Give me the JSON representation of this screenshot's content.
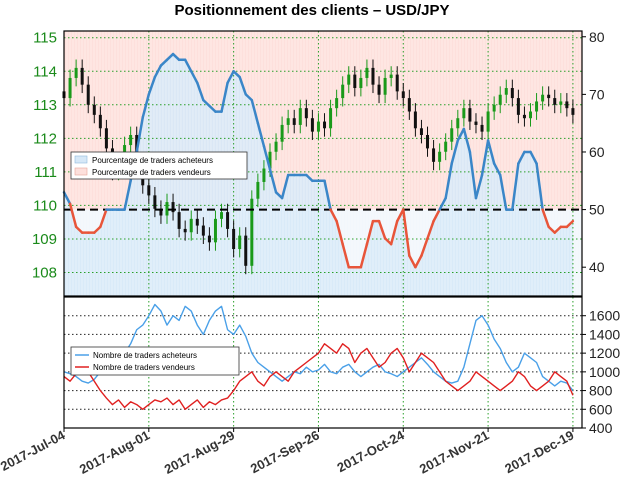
{
  "title": "Positionnement des clients – USD/JPY",
  "colors": {
    "buyers": "#3a86c8",
    "sellers": "#e8553a",
    "candle_up": "#1a9a1a",
    "candle_down": "#111111",
    "buy_fill": "#d6e8f7",
    "sell_fill": "#fde0dc",
    "lower_buy": "#4aa0e8",
    "lower_sell": "#e02020",
    "grid": "#2aa02a"
  },
  "x_ticks": [
    "2017-Jul-04",
    "2017-Aug-01",
    "2017-Aug-29",
    "2017-Sep-26",
    "2017-Oct-24",
    "2017-Nov-21",
    "2017-Dec-19"
  ],
  "chart_data": [
    {
      "type": "line",
      "panel": "upper",
      "title": "",
      "left_axis": {
        "ylim": [
          107.3,
          115.2
        ],
        "ticks": [
          108,
          109,
          110,
          111,
          112,
          113,
          114,
          115
        ]
      },
      "right_axis": {
        "ylim": [
          35,
          81
        ],
        "ticks": [
          40,
          50,
          60,
          70,
          80
        ]
      },
      "threshold": 50,
      "grid": true,
      "legend": {
        "placement": "middle-left",
        "entries": [
          "Pourcentage de traders acheteurs",
          "Pourcentage de traders vendeurs"
        ]
      },
      "series": [
        {
          "name": "Pourcentage de traders acheteurs",
          "axis": "right",
          "x": [
            0,
            2,
            4,
            6,
            8,
            10,
            12,
            14,
            16,
            18,
            20,
            22,
            24,
            26,
            28,
            30,
            32,
            34,
            36,
            38,
            40,
            42,
            44,
            46,
            48,
            50,
            52,
            54,
            56,
            58,
            60,
            62,
            64,
            66,
            68,
            70,
            72,
            74,
            76,
            78,
            80,
            82,
            84,
            86,
            88,
            90,
            92,
            94,
            96,
            98,
            100,
            102,
            104,
            106,
            108,
            110,
            112,
            114,
            116,
            118,
            120,
            122,
            124,
            126,
            128,
            130,
            132,
            134,
            136,
            138,
            140,
            142,
            144,
            146,
            148,
            150,
            152,
            154,
            156,
            158,
            160,
            162,
            164,
            166,
            168
          ],
          "values": [
            53,
            51,
            47,
            46,
            46,
            46,
            47,
            50,
            50,
            50,
            50,
            55,
            60,
            66,
            70,
            73,
            75,
            76,
            77,
            76,
            76,
            74,
            72,
            69,
            68,
            67,
            67,
            72,
            74,
            73,
            70,
            69,
            65,
            61,
            57,
            53,
            52,
            56,
            56,
            56,
            56,
            55,
            55,
            55,
            50,
            48,
            44,
            40,
            40,
            40,
            44,
            48,
            48,
            45,
            44,
            48,
            50,
            42,
            40,
            42,
            45,
            48,
            50,
            52,
            58,
            62,
            64,
            60,
            52,
            56,
            62,
            58,
            56,
            50,
            50,
            58,
            60,
            60,
            58,
            50,
            47,
            46,
            47,
            47,
            48
          ]
        }
      ]
    },
    {
      "type": "line",
      "panel": "upper",
      "title": "",
      "series": [
        {
          "name": "USD/JPY",
          "axis": "left",
          "kind": "candlestick",
          "x": [
            0,
            2,
            4,
            6,
            8,
            10,
            12,
            14,
            16,
            18,
            20,
            22,
            24,
            26,
            28,
            30,
            32,
            34,
            36,
            38,
            40,
            42,
            44,
            46,
            48,
            50,
            52,
            54,
            56,
            58,
            60,
            62,
            64,
            66,
            68,
            70,
            72,
            74,
            76,
            78,
            80,
            82,
            84,
            86,
            88,
            90,
            92,
            94,
            96,
            98,
            100,
            102,
            104,
            106,
            108,
            110,
            112,
            114,
            116,
            118,
            120,
            122,
            124,
            126,
            128,
            130,
            132,
            134,
            136,
            138,
            140,
            142,
            144,
            146,
            148,
            150,
            152,
            154,
            156,
            158,
            160,
            162,
            164,
            166,
            168
          ],
          "values": [
            113.2,
            113.8,
            114.1,
            113.6,
            113.0,
            112.7,
            112.3,
            111.7,
            111.0,
            111.2,
            111.8,
            112.1,
            111.2,
            110.6,
            110.3,
            109.9,
            109.7,
            110.1,
            109.8,
            109.3,
            109.2,
            109.6,
            109.4,
            109.1,
            108.9,
            109.6,
            109.8,
            109.3,
            108.7,
            109.1,
            108.2,
            110.2,
            110.7,
            111.1,
            111.6,
            111.9,
            112.4,
            112.6,
            112.4,
            112.9,
            112.6,
            112.2,
            112.5,
            112.3,
            112.9,
            113.2,
            113.6,
            113.9,
            113.5,
            113.8,
            114.1,
            113.6,
            113.3,
            113.8,
            113.9,
            113.4,
            113.2,
            112.8,
            112.3,
            112.1,
            111.7,
            111.3,
            111.6,
            111.9,
            112.3,
            112.6,
            112.9,
            112.5,
            112.4,
            112.2,
            112.8,
            113.0,
            113.3,
            113.5,
            113.2,
            112.7,
            112.6,
            112.8,
            113.1,
            113.3,
            113.2,
            113.0,
            113.1,
            112.9,
            112.7
          ]
        }
      ]
    },
    {
      "type": "line",
      "panel": "lower",
      "title": "",
      "right_axis": {
        "ylim": [
          400,
          1800
        ],
        "ticks": [
          400,
          600,
          800,
          1000,
          1200,
          1400,
          1600
        ]
      },
      "grid": true,
      "legend": {
        "placement": "middle-left",
        "entries": [
          "Nombre de traders acheteurs",
          "Nombre de traders vendeurs"
        ]
      },
      "series": [
        {
          "name": "Nombre de traders acheteurs",
          "x": [
            0,
            2,
            4,
            6,
            8,
            10,
            12,
            14,
            16,
            18,
            20,
            22,
            24,
            26,
            28,
            30,
            32,
            34,
            36,
            38,
            40,
            42,
            44,
            46,
            48,
            50,
            52,
            54,
            56,
            58,
            60,
            62,
            64,
            66,
            68,
            70,
            72,
            74,
            76,
            78,
            80,
            82,
            84,
            86,
            88,
            90,
            92,
            94,
            96,
            98,
            100,
            102,
            104,
            106,
            108,
            110,
            112,
            114,
            116,
            118,
            120,
            122,
            124,
            126,
            128,
            130,
            132,
            134,
            136,
            138,
            140,
            142,
            144,
            146,
            148,
            150,
            152,
            154,
            156,
            158,
            160,
            162,
            164,
            166,
            168
          ],
          "values": [
            1000,
            980,
            950,
            900,
            880,
            920,
            1000,
            1050,
            1100,
            1180,
            1200,
            1300,
            1450,
            1500,
            1600,
            1720,
            1650,
            1500,
            1600,
            1550,
            1700,
            1650,
            1500,
            1400,
            1550,
            1650,
            1700,
            1450,
            1400,
            1500,
            1380,
            1200,
            1100,
            1050,
            1000,
            950,
            900,
            950,
            1000,
            980,
            1050,
            1000,
            1020,
            1080,
            1000,
            980,
            1050,
            1080,
            1000,
            950,
            1000,
            1050,
            1080,
            1000,
            980,
            950,
            1000,
            1050,
            1100,
            1150,
            1080,
            1000,
            950,
            900,
            880,
            900,
            1050,
            1300,
            1550,
            1600,
            1500,
            1350,
            1250,
            1100,
            1000,
            1050,
            1200,
            1150,
            1100,
            950,
            900,
            850,
            900,
            880,
            800
          ]
        },
        {
          "name": "Nombre de traders vendeurs",
          "x": [
            0,
            2,
            4,
            6,
            8,
            10,
            12,
            14,
            16,
            18,
            20,
            22,
            24,
            26,
            28,
            30,
            32,
            34,
            36,
            38,
            40,
            42,
            44,
            46,
            48,
            50,
            52,
            54,
            56,
            58,
            60,
            62,
            64,
            66,
            68,
            70,
            72,
            74,
            76,
            78,
            80,
            82,
            84,
            86,
            88,
            90,
            92,
            94,
            96,
            98,
            100,
            102,
            104,
            106,
            108,
            110,
            112,
            114,
            116,
            118,
            120,
            122,
            124,
            126,
            128,
            130,
            132,
            134,
            136,
            138,
            140,
            142,
            144,
            146,
            148,
            150,
            152,
            154,
            156,
            158,
            160,
            162,
            164,
            166,
            168
          ],
          "values": [
            950,
            900,
            980,
            1050,
            1000,
            900,
            800,
            720,
            650,
            700,
            620,
            680,
            650,
            600,
            650,
            700,
            680,
            720,
            650,
            700,
            600,
            650,
            700,
            620,
            680,
            650,
            700,
            720,
            800,
            900,
            950,
            1000,
            900,
            850,
            950,
            1000,
            950,
            900,
            1000,
            1050,
            1100,
            1150,
            1200,
            1300,
            1250,
            1200,
            1300,
            1250,
            1100,
            1200,
            1250,
            1150,
            1050,
            1100,
            1200,
            1250,
            1150,
            1000,
            1100,
            1200,
            1150,
            1100,
            1000,
            900,
            850,
            800,
            850,
            900,
            1000,
            950,
            900,
            850,
            800,
            850,
            900,
            1000,
            950,
            850,
            800,
            850,
            900,
            1000,
            950,
            900,
            750
          ]
        }
      ]
    }
  ]
}
